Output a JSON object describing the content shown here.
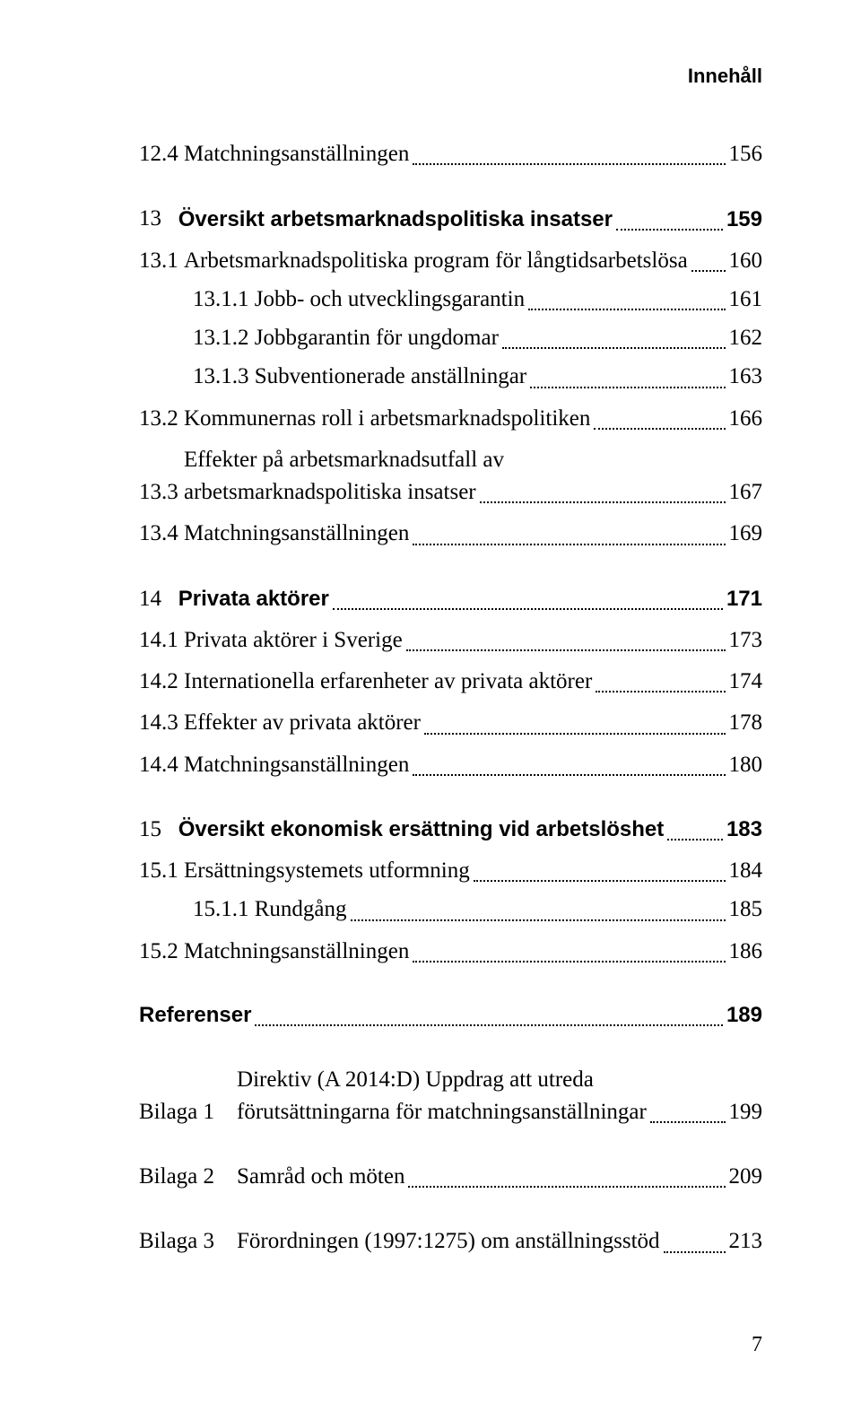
{
  "header": "Innehåll",
  "footer_page": "7",
  "entries": [
    {
      "id": "12-4",
      "num": "12.4 ",
      "label": "Matchningsanställningen",
      "page": "156",
      "bold": false,
      "class": ""
    },
    {
      "id": "13",
      "num": "13   ",
      "label": "Översikt arbetsmarknadspolitiska insatser",
      "page": "159",
      "bold": true,
      "class": "gap-before-chapter"
    },
    {
      "id": "13-1",
      "num": "13.1 ",
      "label": "Arbetsmarknadspolitiska program för långtidsarbetslösa",
      "page": "160",
      "bold": false,
      "class": "gap-small"
    },
    {
      "id": "13-1-1",
      "num": "",
      "label": "13.1.1 Jobb- och utvecklingsgarantin",
      "page": "161",
      "bold": false,
      "class": "sub"
    },
    {
      "id": "13-1-2",
      "num": "",
      "label": "13.1.2 Jobbgarantin för ungdomar",
      "page": "162",
      "bold": false,
      "class": "sub"
    },
    {
      "id": "13-1-3",
      "num": "",
      "label": "13.1.3 Subventionerade anställningar",
      "page": "163",
      "bold": false,
      "class": "sub"
    },
    {
      "id": "13-2",
      "num": "13.2 ",
      "label": "Kommunernas roll i arbetsmarknadspolitiken",
      "page": "166",
      "bold": false,
      "class": "gap-small"
    },
    {
      "id": "13-3",
      "num": "13.3 ",
      "label_line1": "Effekter på arbetsmarknadsutfall av",
      "label_line2": "arbetsmarknadspolitiska insatser",
      "page": "167",
      "bold": false,
      "class": "gap-small",
      "multiline": true
    },
    {
      "id": "13-4",
      "num": "13.4 ",
      "label": "Matchningsanställningen",
      "page": "169",
      "bold": false,
      "class": "gap-small"
    },
    {
      "id": "14",
      "num": "14   ",
      "label": "Privata aktörer",
      "page": "171",
      "bold": true,
      "class": "gap-before-chapter"
    },
    {
      "id": "14-1",
      "num": "14.1 ",
      "label": "Privata aktörer i Sverige",
      "page": "173",
      "bold": false,
      "class": "gap-small"
    },
    {
      "id": "14-2",
      "num": "14.2 ",
      "label": "Internationella erfarenheter av privata aktörer",
      "page": "174",
      "bold": false,
      "class": "gap-small"
    },
    {
      "id": "14-3",
      "num": "14.3 ",
      "label": "Effekter av privata aktörer",
      "page": "178",
      "bold": false,
      "class": "gap-small"
    },
    {
      "id": "14-4",
      "num": "14.4 ",
      "label": "Matchningsanställningen",
      "page": "180",
      "bold": false,
      "class": "gap-small"
    },
    {
      "id": "15",
      "num": "15   ",
      "label": "Översikt ekonomisk ersättning vid arbetslöshet",
      "page": "183",
      "bold": true,
      "class": "gap-before-chapter"
    },
    {
      "id": "15-1",
      "num": "15.1 ",
      "label": "Ersättningsystemets utformning",
      "page": "184",
      "bold": false,
      "class": "gap-small"
    },
    {
      "id": "15-1-1",
      "num": "",
      "label": "15.1.1 Rundgång",
      "page": "185",
      "bold": false,
      "class": "sub"
    },
    {
      "id": "15-2",
      "num": "15.2 ",
      "label": "Matchningsanställningen",
      "page": "186",
      "bold": false,
      "class": "gap-small"
    },
    {
      "id": "ref",
      "num": "",
      "label": "Referenser",
      "page": "189",
      "bold": true,
      "class": "gap-before-chapter"
    },
    {
      "id": "bil1",
      "num": "Bilaga 1    ",
      "label_line1": "Direktiv (A 2014:D) Uppdrag att utreda",
      "label_line2": "förutsättningarna för matchningsanställningar",
      "page": "199",
      "bold": false,
      "class": "gap-before-chapter",
      "multiline": true
    },
    {
      "id": "bil2",
      "num": "Bilaga 2    ",
      "label": "Samråd och möten",
      "page": "209",
      "bold": false,
      "class": "gap-before-chapter"
    },
    {
      "id": "bil3",
      "num": "Bilaga 3    ",
      "label": "Förordningen (1997:1275) om anställningsstöd",
      "page": "213",
      "bold": false,
      "class": "gap-before-chapter"
    }
  ]
}
